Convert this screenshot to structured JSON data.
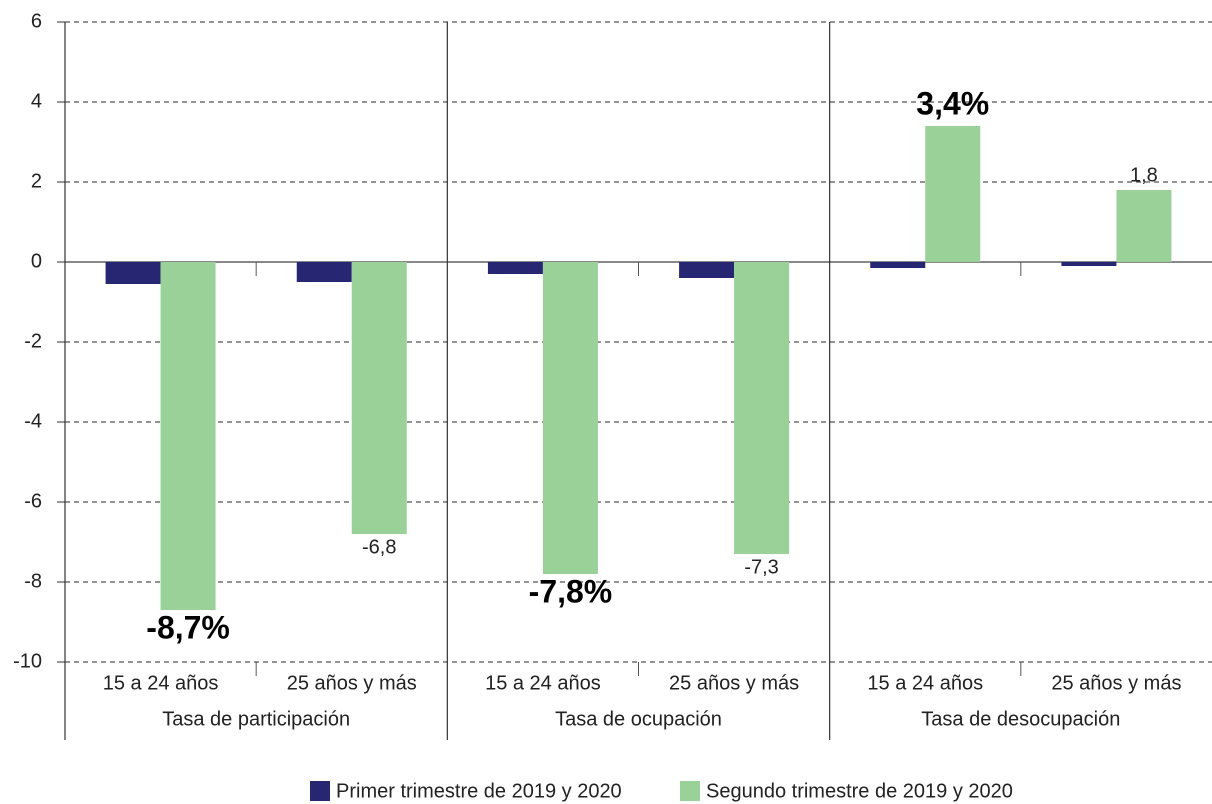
{
  "chart_data": {
    "type": "bar",
    "groups": [
      "Tasa de participación",
      "Tasa de ocupación",
      "Tasa de desocupación"
    ],
    "categories": [
      "15 a 24 años",
      "25 años y más",
      "15 a 24 años",
      "25 años y más",
      "15 a 24 años",
      "25 años y más"
    ],
    "series": [
      {
        "name": "Primer trimestre de 2019 y 2020",
        "color": "#262673",
        "values": [
          -0.55,
          -0.5,
          -0.3,
          -0.4,
          -0.15,
          -0.1
        ]
      },
      {
        "name": "Segundo trimestre de 2019 y 2020",
        "color": "#99d199",
        "values": [
          -8.7,
          -6.8,
          -7.8,
          -7.3,
          3.4,
          1.8
        ],
        "value_labels": [
          "-8,7%",
          "-6,8",
          "-7,8%",
          "-7,3",
          "3,4%",
          "1,8"
        ]
      }
    ],
    "ylim": [
      -10,
      6
    ],
    "yticks": [
      6,
      4,
      2,
      0,
      -2,
      -4,
      -6,
      -8,
      -10
    ],
    "grid": true
  }
}
